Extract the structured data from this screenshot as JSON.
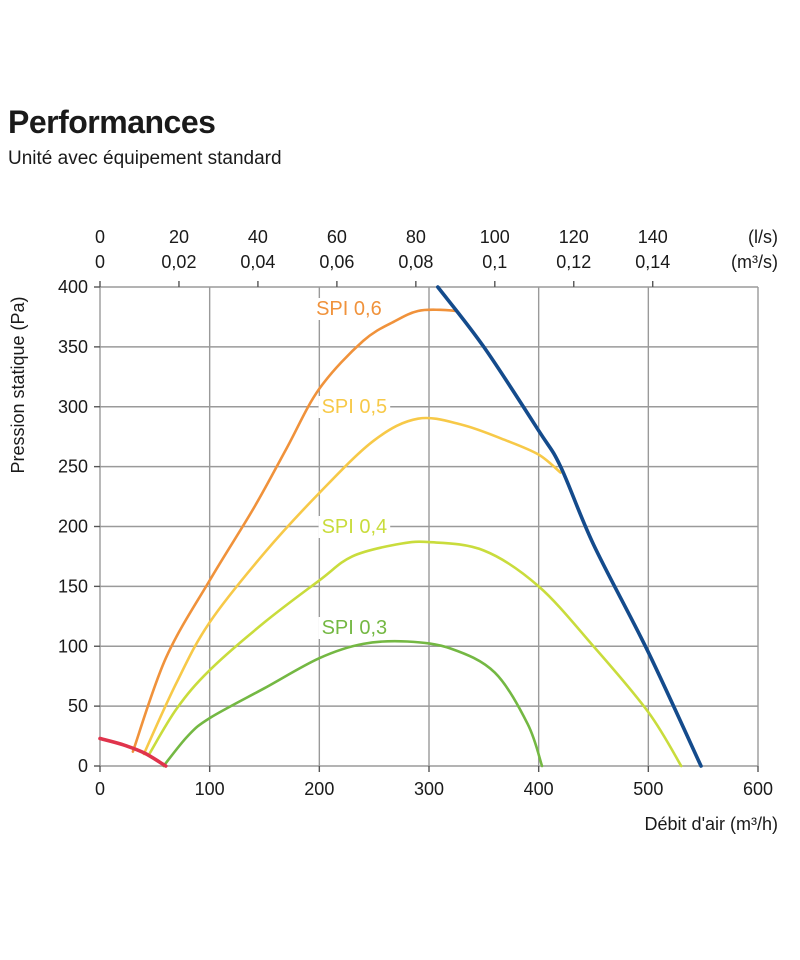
{
  "title": "Performances",
  "subtitle": "Unité avec équipement standard",
  "chart_data": {
    "type": "line",
    "xlabel": "Débit d'air (m³/h)",
    "ylabel": "Pression statique  (Pa)",
    "xlim": [
      0,
      600
    ],
    "ylim": [
      0,
      400
    ],
    "grid": true,
    "x_ticks": [
      "0",
      "100",
      "200",
      "300",
      "400",
      "500",
      "600"
    ],
    "y_ticks": [
      "0",
      "50",
      "100",
      "150",
      "200",
      "250",
      "300",
      "350",
      "400"
    ],
    "top_axis": {
      "ls_ticks": [
        "0",
        "20",
        "40",
        "60",
        "80",
        "100",
        "120",
        "140"
      ],
      "m3s_ticks": [
        "0",
        "0,02",
        "0,04",
        "0,06",
        "0,08",
        "0,1",
        "0,12",
        "0,14"
      ],
      "ls_unit": "(l/s)",
      "m3s_unit": "(m³/s)"
    },
    "series": [
      {
        "name": "SPI 0,6",
        "color": "#f0923b",
        "x": [
          30,
          60,
          100,
          140,
          170,
          200,
          240,
          270,
          290,
          310,
          325
        ],
        "y": [
          12,
          90,
          155,
          215,
          265,
          315,
          355,
          372,
          380,
          381,
          380
        ]
      },
      {
        "name": "SPI 0,5",
        "color": "#f7c948",
        "x": [
          40,
          70,
          100,
          150,
          200,
          250,
          290,
          330,
          370,
          400,
          420
        ],
        "y": [
          10,
          70,
          120,
          178,
          228,
          272,
          290,
          285,
          272,
          260,
          245
        ]
      },
      {
        "name": "SPI 0,4",
        "color": "#c9dc3c",
        "x": [
          45,
          70,
          100,
          150,
          200,
          230,
          270,
          300,
          350,
          400,
          450,
          500,
          530
        ],
        "y": [
          10,
          48,
          80,
          120,
          155,
          175,
          185,
          187,
          180,
          150,
          100,
          45,
          0
        ]
      },
      {
        "name": "SPI 0,3",
        "color": "#74b843",
        "x": [
          58,
          80,
          100,
          150,
          200,
          240,
          280,
          320,
          360,
          390,
          403
        ],
        "y": [
          0,
          25,
          40,
          65,
          90,
          102,
          104,
          98,
          78,
          35,
          0
        ]
      },
      {
        "name": "",
        "color": "#144b8c",
        "x": [
          308,
          350,
          400,
          420,
          450,
          500,
          548
        ],
        "y": [
          400,
          350,
          280,
          250,
          185,
          95,
          0
        ]
      },
      {
        "name": "",
        "color": "#e0344c",
        "x": [
          0,
          20,
          40,
          60
        ],
        "y": [
          23,
          18,
          11,
          0
        ]
      }
    ]
  }
}
